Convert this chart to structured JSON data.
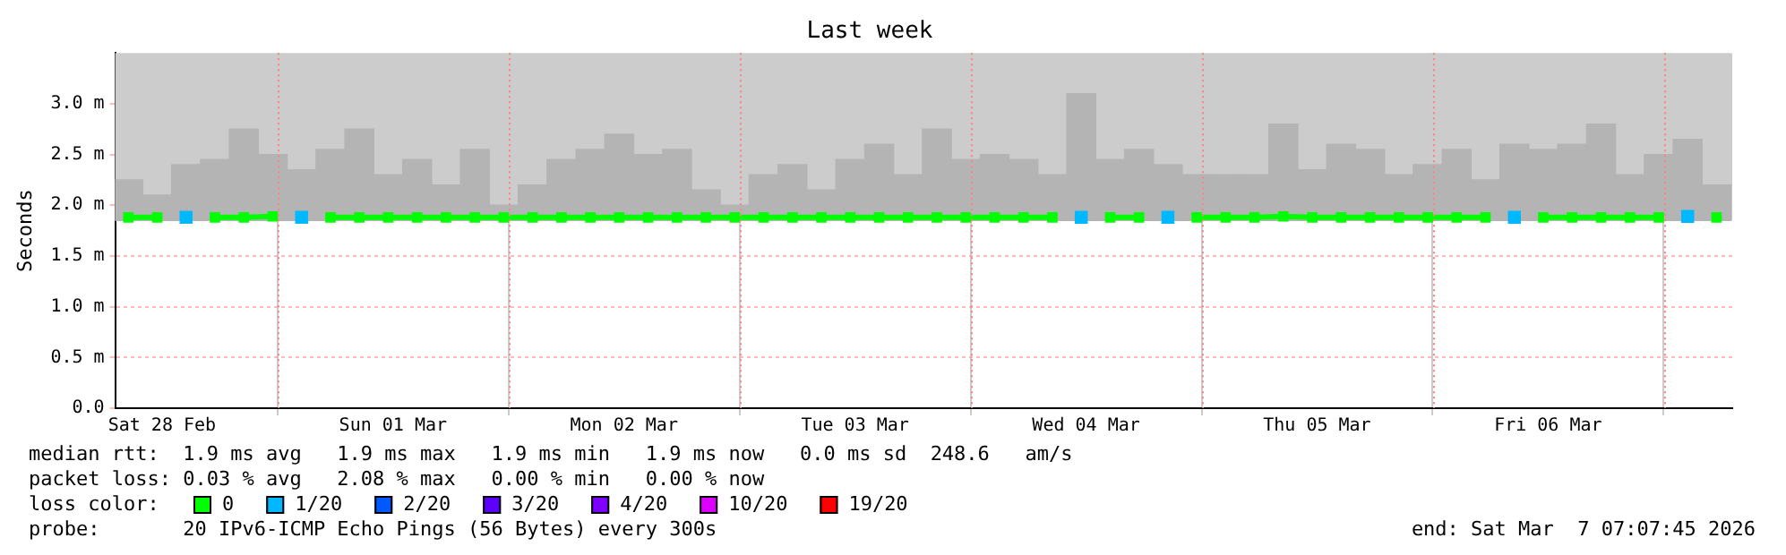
{
  "chart_data": {
    "type": "line",
    "marker": "square",
    "title": "Last week",
    "ylabel": "Seconds",
    "legend_title": "loss color:",
    "legend": "bottom",
    "grid": true,
    "xlim": [
      "2026-02-28T07:08",
      "2026-03-07T07:08"
    ],
    "xticks": [
      {
        "value": "2026-02-28T12:00",
        "label": "Sat 28 Feb"
      },
      {
        "value": "2026-03-01T12:00",
        "label": "Sun 01 Mar"
      },
      {
        "value": "2026-03-02T12:00",
        "label": "Mon 02 Mar"
      },
      {
        "value": "2026-03-03T12:00",
        "label": "Tue 03 Mar"
      },
      {
        "value": "2026-03-04T12:00",
        "label": "Wed 04 Mar"
      },
      {
        "value": "2026-03-05T12:00",
        "label": "Thu 05 Mar"
      },
      {
        "value": "2026-03-06T12:00",
        "label": "Fri 06 Mar"
      }
    ],
    "ref_lines": [
      {
        "axis": "x",
        "value": "2026-03-01T00:00",
        "color": "#ff8080",
        "line_style": "dotted"
      },
      {
        "axis": "x",
        "value": "2026-03-02T00:00",
        "color": "#ff8080",
        "line_style": "dotted"
      },
      {
        "axis": "x",
        "value": "2026-03-03T00:00",
        "color": "#ff8080",
        "line_style": "dotted"
      },
      {
        "axis": "x",
        "value": "2026-03-04T00:00",
        "color": "#ff8080",
        "line_style": "dotted"
      },
      {
        "axis": "x",
        "value": "2026-03-05T00:00",
        "color": "#ff8080",
        "line_style": "dotted"
      },
      {
        "axis": "x",
        "value": "2026-03-06T00:00",
        "color": "#ff8080",
        "line_style": "dotted"
      },
      {
        "axis": "x",
        "value": "2026-03-07T00:00",
        "color": "#ff8080",
        "line_style": "dotted"
      }
    ],
    "ylim": [
      0,
      3.5
    ],
    "yticks": [
      {
        "value": 0,
        "label": "0.0"
      },
      {
        "value": 0.5,
        "label": "0.5 m"
      },
      {
        "value": 1,
        "label": "1.0 m"
      },
      {
        "value": 1.5,
        "label": "1.5 m"
      },
      {
        "value": 2,
        "label": "2.0 m"
      },
      {
        "value": 2.5,
        "label": "2.5 m"
      },
      {
        "value": 3,
        "label": "3.0 m"
      }
    ],
    "bands": [
      {
        "axis": "y",
        "from": 1.85,
        "to": 3.5,
        "color": "#cccccc"
      }
    ],
    "x": [
      "2026-02-28T08:30",
      "2026-02-28T11:30",
      "2026-02-28T14:30",
      "2026-02-28T17:30",
      "2026-02-28T20:30",
      "2026-02-28T23:30",
      "2026-03-01T02:30",
      "2026-03-01T05:30",
      "2026-03-01T08:30",
      "2026-03-01T11:30",
      "2026-03-01T14:30",
      "2026-03-01T17:30",
      "2026-03-01T20:30",
      "2026-03-01T23:30",
      "2026-03-02T02:30",
      "2026-03-02T05:30",
      "2026-03-02T08:30",
      "2026-03-02T11:30",
      "2026-03-02T14:30",
      "2026-03-02T17:30",
      "2026-03-02T20:30",
      "2026-03-02T23:30",
      "2026-03-03T02:30",
      "2026-03-03T05:30",
      "2026-03-03T08:30",
      "2026-03-03T11:30",
      "2026-03-03T14:30",
      "2026-03-03T17:30",
      "2026-03-03T20:30",
      "2026-03-03T23:30",
      "2026-03-04T02:30",
      "2026-03-04T05:30",
      "2026-03-04T08:30",
      "2026-03-04T11:30",
      "2026-03-04T14:30",
      "2026-03-04T17:30",
      "2026-03-04T20:30",
      "2026-03-04T23:30",
      "2026-03-05T02:30",
      "2026-03-05T05:30",
      "2026-03-05T08:30",
      "2026-03-05T11:30",
      "2026-03-05T14:30",
      "2026-03-05T17:30",
      "2026-03-05T20:30",
      "2026-03-05T23:30",
      "2026-03-06T02:30",
      "2026-03-06T05:30",
      "2026-03-06T08:30",
      "2026-03-06T11:30",
      "2026-03-06T14:30",
      "2026-03-06T17:30",
      "2026-03-06T20:30",
      "2026-03-06T23:30",
      "2026-03-07T02:30",
      "2026-03-07T05:30"
    ],
    "series": [
      {
        "type": "bar",
        "color": "#b4b4b4",
        "base": [
          1.85,
          1.85,
          1.85,
          1.85,
          1.85,
          1.85,
          1.85,
          1.85,
          1.85,
          1.85,
          1.85,
          1.85,
          1.85,
          1.85,
          1.85,
          1.85,
          1.85,
          1.85,
          1.85,
          1.85,
          1.85,
          1.85,
          1.85,
          1.85,
          1.85,
          1.85,
          1.85,
          1.85,
          1.85,
          1.85,
          1.85,
          1.85,
          1.85,
          1.85,
          1.85,
          1.85,
          1.85,
          1.85,
          1.85,
          1.85,
          1.85,
          1.85,
          1.85,
          1.85,
          1.85,
          1.85,
          1.85,
          1.85,
          1.85,
          1.85,
          1.85,
          1.85,
          1.85,
          1.85,
          1.85,
          1.85
        ],
        "values": [
          0.4,
          0.25,
          0.55,
          0.6,
          0.9,
          0.65,
          0.5,
          0.7,
          0.9,
          0.45,
          0.6,
          0.35,
          0.7,
          0.15,
          0.35,
          0.6,
          0.7,
          0.85,
          0.65,
          0.7,
          0.3,
          0.15,
          0.45,
          0.55,
          0.3,
          0.6,
          0.75,
          0.45,
          0.9,
          0.6,
          0.65,
          0.6,
          0.45,
          1.25,
          0.6,
          0.7,
          0.55,
          0.45,
          0.45,
          0.45,
          0.95,
          0.5,
          0.75,
          0.7,
          0.45,
          0.55,
          0.7,
          0.4,
          0.75,
          0.7,
          0.75,
          0.95,
          0.45,
          0.65,
          0.8,
          0.35
        ]
      },
      {
        "name": "0",
        "color": "#00ff00",
        "values": [
          1.88,
          1.88,
          null,
          1.88,
          1.88,
          1.89,
          null,
          1.88,
          1.88,
          1.88,
          1.88,
          1.88,
          1.88,
          1.88,
          1.88,
          1.88,
          1.88,
          1.88,
          1.88,
          1.88,
          1.88,
          1.88,
          1.88,
          1.88,
          1.88,
          1.88,
          1.88,
          1.88,
          1.88,
          1.88,
          1.88,
          1.88,
          1.88,
          null,
          1.88,
          1.88,
          null,
          1.88,
          1.88,
          1.88,
          1.89,
          1.88,
          1.88,
          1.88,
          1.88,
          1.88,
          1.88,
          1.88,
          null,
          1.88,
          1.88,
          1.88,
          1.88,
          1.88,
          null,
          1.88
        ]
      },
      {
        "type": "scatter",
        "name": "1/20",
        "color": "#00b8ff",
        "values": [
          null,
          null,
          1.88,
          null,
          null,
          null,
          1.88,
          null,
          null,
          null,
          null,
          null,
          null,
          null,
          null,
          null,
          null,
          null,
          null,
          null,
          null,
          null,
          null,
          null,
          null,
          null,
          null,
          null,
          null,
          null,
          null,
          null,
          null,
          1.88,
          null,
          null,
          1.88,
          null,
          null,
          null,
          null,
          null,
          null,
          null,
          null,
          null,
          null,
          null,
          1.88,
          null,
          null,
          null,
          null,
          null,
          1.89,
          null
        ]
      },
      {
        "name": "2/20",
        "color": "#0059ff",
        "values": [
          null,
          null,
          null,
          null,
          null,
          null,
          null,
          null,
          null,
          null,
          null,
          null,
          null,
          null,
          null,
          null,
          null,
          null,
          null,
          null,
          null,
          null,
          null,
          null,
          null,
          null,
          null,
          null,
          null,
          null,
          null,
          null,
          null,
          null,
          null,
          null,
          null,
          null,
          null,
          null,
          null,
          null,
          null,
          null,
          null,
          null,
          null,
          null,
          null,
          null,
          null,
          null,
          null,
          null,
          null,
          null
        ]
      },
      {
        "name": "3/20",
        "color": "#5e00ff",
        "values": [
          null,
          null,
          null,
          null,
          null,
          null,
          null,
          null,
          null,
          null,
          null,
          null,
          null,
          null,
          null,
          null,
          null,
          null,
          null,
          null,
          null,
          null,
          null,
          null,
          null,
          null,
          null,
          null,
          null,
          null,
          null,
          null,
          null,
          null,
          null,
          null,
          null,
          null,
          null,
          null,
          null,
          null,
          null,
          null,
          null,
          null,
          null,
          null,
          null,
          null,
          null,
          null,
          null,
          null,
          null,
          null
        ]
      },
      {
        "name": "4/20",
        "color": "#7e00ff",
        "values": [
          null,
          null,
          null,
          null,
          null,
          null,
          null,
          null,
          null,
          null,
          null,
          null,
          null,
          null,
          null,
          null,
          null,
          null,
          null,
          null,
          null,
          null,
          null,
          null,
          null,
          null,
          null,
          null,
          null,
          null,
          null,
          null,
          null,
          null,
          null,
          null,
          null,
          null,
          null,
          null,
          null,
          null,
          null,
          null,
          null,
          null,
          null,
          null,
          null,
          null,
          null,
          null,
          null,
          null,
          null,
          null
        ]
      },
      {
        "name": "10/20",
        "color": "#dd00ff",
        "values": [
          null,
          null,
          null,
          null,
          null,
          null,
          null,
          null,
          null,
          null,
          null,
          null,
          null,
          null,
          null,
          null,
          null,
          null,
          null,
          null,
          null,
          null,
          null,
          null,
          null,
          null,
          null,
          null,
          null,
          null,
          null,
          null,
          null,
          null,
          null,
          null,
          null,
          null,
          null,
          null,
          null,
          null,
          null,
          null,
          null,
          null,
          null,
          null,
          null,
          null,
          null,
          null,
          null,
          null,
          null,
          null
        ]
      },
      {
        "name": "19/20",
        "color": "#ff0000",
        "values": [
          null,
          null,
          null,
          null,
          null,
          null,
          null,
          null,
          null,
          null,
          null,
          null,
          null,
          null,
          null,
          null,
          null,
          null,
          null,
          null,
          null,
          null,
          null,
          null,
          null,
          null,
          null,
          null,
          null,
          null,
          null,
          null,
          null,
          null,
          null,
          null,
          null,
          null,
          null,
          null,
          null,
          null,
          null,
          null,
          null,
          null,
          null,
          null,
          null,
          null,
          null,
          null,
          null,
          null,
          null,
          null
        ]
      }
    ],
    "annotations": [
      "median rtt:  1.9 ms avg   1.9 ms max   1.9 ms min   1.9 ms now   0.0 ms sd  248.6   am/s",
      "packet loss: 0.03 % avg   2.08 % max   0.00 % min   0.00 % now",
      "probe:       20 IPv6-ICMP Echo Pings (56 Bytes) every 300s",
      "end: Sat Mar  7 07:07:45 2026"
    ]
  }
}
